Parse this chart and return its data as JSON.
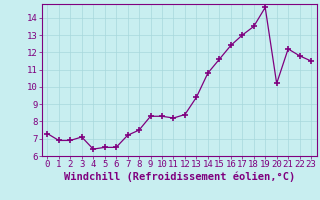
{
  "x": [
    0,
    1,
    2,
    3,
    4,
    5,
    6,
    7,
    8,
    9,
    10,
    11,
    12,
    13,
    14,
    15,
    16,
    17,
    18,
    19,
    20,
    21,
    22,
    23
  ],
  "y": [
    7.3,
    6.9,
    6.9,
    7.1,
    6.4,
    6.5,
    6.5,
    7.2,
    7.5,
    8.3,
    8.3,
    8.2,
    8.4,
    9.4,
    10.8,
    11.6,
    12.4,
    13.0,
    13.5,
    14.6,
    10.2,
    12.2,
    11.8,
    11.5
  ],
  "line_color": "#7f007f",
  "marker": "+",
  "markersize": 4,
  "markeredgewidth": 1.2,
  "linewidth": 0.9,
  "xlabel": "Windchill (Refroidissement éolien,°C)",
  "ylim": [
    6,
    14.8
  ],
  "xlim": [
    -0.5,
    23.5
  ],
  "yticks": [
    6,
    7,
    8,
    9,
    10,
    11,
    12,
    13,
    14
  ],
  "xticks": [
    0,
    1,
    2,
    3,
    4,
    5,
    6,
    7,
    8,
    9,
    10,
    11,
    12,
    13,
    14,
    15,
    16,
    17,
    18,
    19,
    20,
    21,
    22,
    23
  ],
  "background_color": "#c8eef0",
  "grid_color": "#a8d8dc",
  "axis_color": "#7f007f",
  "tick_color": "#7f007f",
  "label_color": "#7f007f",
  "font_size": 6.5,
  "label_fontsize": 7.5
}
